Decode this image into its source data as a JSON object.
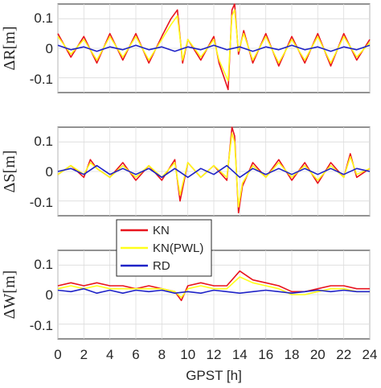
{
  "chart_data": {
    "type": "line",
    "x_label": "GPST [h]",
    "x_range": [
      0,
      24
    ],
    "x_ticks": [
      "0",
      "2",
      "4",
      "6",
      "8",
      "10",
      "12",
      "14",
      "16",
      "18",
      "20",
      "22",
      "24"
    ],
    "grid": true,
    "legend": {
      "placement": "between panels 2 and 3, left-center",
      "entries": [
        {
          "name": "KN",
          "color": "#e8141e"
        },
        {
          "name": "KN(PWL)",
          "color": "#ffff1a"
        },
        {
          "name": "RD",
          "color": "#1f23c7"
        }
      ]
    },
    "panels": [
      {
        "ylabel": "ΔR[m]",
        "ylim": [
          -0.15,
          0.15
        ],
        "yticks": [
          "0.1",
          "0",
          "-0.1"
        ],
        "series": {
          "KN": {
            "x": [
              0,
              1,
              2,
              3,
              4,
              5,
              6,
              7,
              8,
              8.7,
              9.2,
              9.6,
              10,
              11,
              12,
              12.4,
              12.8,
              13.1,
              13.4,
              13.6,
              13.9,
              14.3,
              15,
              16,
              17,
              18,
              19,
              20,
              21,
              22,
              23,
              24
            ],
            "y": [
              0.05,
              -0.03,
              0.04,
              -0.05,
              0.05,
              -0.04,
              0.05,
              -0.05,
              0.04,
              0.1,
              0.13,
              -0.05,
              0.03,
              -0.04,
              0.04,
              -0.05,
              -0.1,
              -0.14,
              0.13,
              0.15,
              -0.02,
              0.06,
              -0.05,
              0.05,
              -0.06,
              0.04,
              -0.05,
              0.05,
              -0.06,
              0.05,
              -0.04,
              0.03
            ]
          },
          "KN(PWL)": {
            "x": [
              0,
              1,
              2,
              3,
              4,
              5,
              6,
              7,
              8,
              8.7,
              9.2,
              9.6,
              10,
              11,
              12,
              12.4,
              12.8,
              13.1,
              13.4,
              13.6,
              13.9,
              14.3,
              15,
              16,
              17,
              18,
              19,
              20,
              21,
              22,
              23,
              24
            ],
            "y": [
              0.04,
              -0.02,
              0.03,
              -0.04,
              0.04,
              -0.03,
              0.04,
              -0.04,
              0.03,
              0.08,
              0.11,
              -0.04,
              0.03,
              -0.03,
              0.03,
              -0.04,
              -0.08,
              -0.11,
              0.11,
              0.13,
              -0.01,
              0.05,
              -0.04,
              0.04,
              -0.05,
              0.03,
              -0.04,
              0.04,
              -0.05,
              0.04,
              -0.03,
              0.02
            ]
          },
          "RD": {
            "x": [
              0,
              1,
              2,
              3,
              4,
              5,
              6,
              7,
              8,
              9,
              10,
              11,
              12,
              13,
              14,
              15,
              16,
              17,
              18,
              19,
              20,
              21,
              22,
              23,
              24
            ],
            "y": [
              0.01,
              -0.005,
              0.005,
              -0.01,
              0.005,
              -0.005,
              0.01,
              -0.005,
              0.005,
              -0.01,
              0.005,
              -0.005,
              0.01,
              -0.005,
              0.005,
              -0.01,
              0.005,
              -0.005,
              0.01,
              -0.005,
              0.005,
              -0.01,
              0.005,
              -0.005,
              0.01
            ]
          }
        }
      },
      {
        "ylabel": "ΔS[m]",
        "ylim": [
          -0.15,
          0.15
        ],
        "yticks": [
          "0.1",
          "0",
          "-0.1"
        ],
        "series": {
          "KN": {
            "x": [
              0,
              1,
              2,
              2.5,
              3,
              4,
              5,
              6,
              7,
              8,
              9,
              9.4,
              10,
              11,
              12,
              13,
              13.4,
              13.6,
              13.9,
              14.2,
              15,
              16,
              17,
              18,
              19,
              20,
              21,
              22,
              22.5,
              23,
              24
            ],
            "y": [
              -0.01,
              0.02,
              -0.02,
              0.04,
              0.01,
              -0.02,
              0.03,
              -0.03,
              0.02,
              -0.03,
              0.04,
              -0.1,
              0.03,
              -0.02,
              0.02,
              -0.03,
              0.15,
              0.12,
              -0.14,
              -0.05,
              0.03,
              -0.02,
              0.04,
              -0.03,
              0.03,
              -0.04,
              0.03,
              -0.02,
              0.06,
              -0.02,
              0.01
            ]
          },
          "KN(PWL)": {
            "x": [
              0,
              1,
              2,
              2.5,
              3,
              4,
              5,
              6,
              7,
              8,
              9,
              9.4,
              10,
              11,
              12,
              13,
              13.4,
              13.6,
              13.9,
              14.2,
              15,
              16,
              17,
              18,
              19,
              20,
              21,
              22,
              22.5,
              23,
              24
            ],
            "y": [
              -0.01,
              0.02,
              -0.01,
              0.03,
              0.01,
              -0.02,
              0.02,
              -0.02,
              0.02,
              -0.02,
              0.03,
              -0.08,
              0.03,
              -0.02,
              0.02,
              -0.02,
              0.13,
              0.1,
              -0.12,
              -0.04,
              0.02,
              -0.02,
              0.03,
              -0.02,
              0.02,
              -0.03,
              0.02,
              -0.02,
              0.05,
              -0.01,
              0.01
            ]
          },
          "RD": {
            "x": [
              0,
              1,
              2,
              3,
              4,
              5,
              6,
              7,
              8,
              9,
              10,
              11,
              12,
              13,
              14,
              15,
              16,
              17,
              18,
              19,
              20,
              21,
              22,
              23,
              24
            ],
            "y": [
              0,
              0.01,
              -0.01,
              0.02,
              -0.01,
              0.01,
              -0.01,
              0.01,
              -0.02,
              0.01,
              -0.02,
              0.01,
              -0.01,
              0.02,
              -0.02,
              0.01,
              -0.01,
              0.01,
              -0.01,
              0.01,
              -0.01,
              0.01,
              -0.01,
              0.01,
              0
            ]
          }
        }
      },
      {
        "ylabel": "ΔW[m]",
        "ylim": [
          -0.15,
          0.15
        ],
        "yticks": [
          "0.1",
          "0",
          "-0.1"
        ],
        "series": {
          "KN": {
            "x": [
              0,
              1,
              2,
              3,
              4,
              5,
              6,
              7,
              8,
              9,
              9.5,
              10,
              11,
              12,
              13,
              14,
              15,
              16,
              17,
              18,
              19,
              20,
              21,
              22,
              23,
              24
            ],
            "y": [
              0.03,
              0.04,
              0.03,
              0.04,
              0.03,
              0.03,
              0.02,
              0.03,
              0.02,
              0.01,
              -0.02,
              0.03,
              0.04,
              0.03,
              0.03,
              0.08,
              0.05,
              0.04,
              0.03,
              0.01,
              0.01,
              0.02,
              0.03,
              0.03,
              0.02,
              0.02
            ]
          },
          "KN(PWL)": {
            "x": [
              0,
              1,
              2,
              3,
              4,
              5,
              6,
              7,
              8,
              9,
              9.5,
              10,
              11,
              12,
              13,
              14,
              15,
              16,
              17,
              18,
              19,
              20,
              21,
              22,
              23,
              24
            ],
            "y": [
              0.02,
              0.03,
              0.02,
              0.03,
              0.02,
              0.02,
              0.02,
              0.02,
              0.02,
              0.01,
              -0.01,
              0.02,
              0.03,
              0.02,
              0.02,
              0.06,
              0.04,
              0.03,
              0.02,
              0.0,
              0.0,
              0.01,
              0.02,
              0.02,
              0.01,
              0.01
            ]
          },
          "RD": {
            "x": [
              0,
              1,
              2,
              3,
              4,
              5,
              6,
              7,
              8,
              9,
              10,
              11,
              12,
              13,
              14,
              15,
              16,
              17,
              18,
              19,
              20,
              21,
              22,
              23,
              24
            ],
            "y": [
              0.015,
              0.01,
              0.02,
              0.005,
              0.015,
              0.005,
              0.015,
              0.01,
              0.015,
              0.005,
              0.01,
              0.005,
              0.015,
              0.01,
              0.005,
              0.01,
              0.015,
              0.01,
              0.005,
              0.01,
              0.015,
              0.01,
              0.015,
              0.01,
              0.01
            ]
          }
        }
      }
    ]
  }
}
